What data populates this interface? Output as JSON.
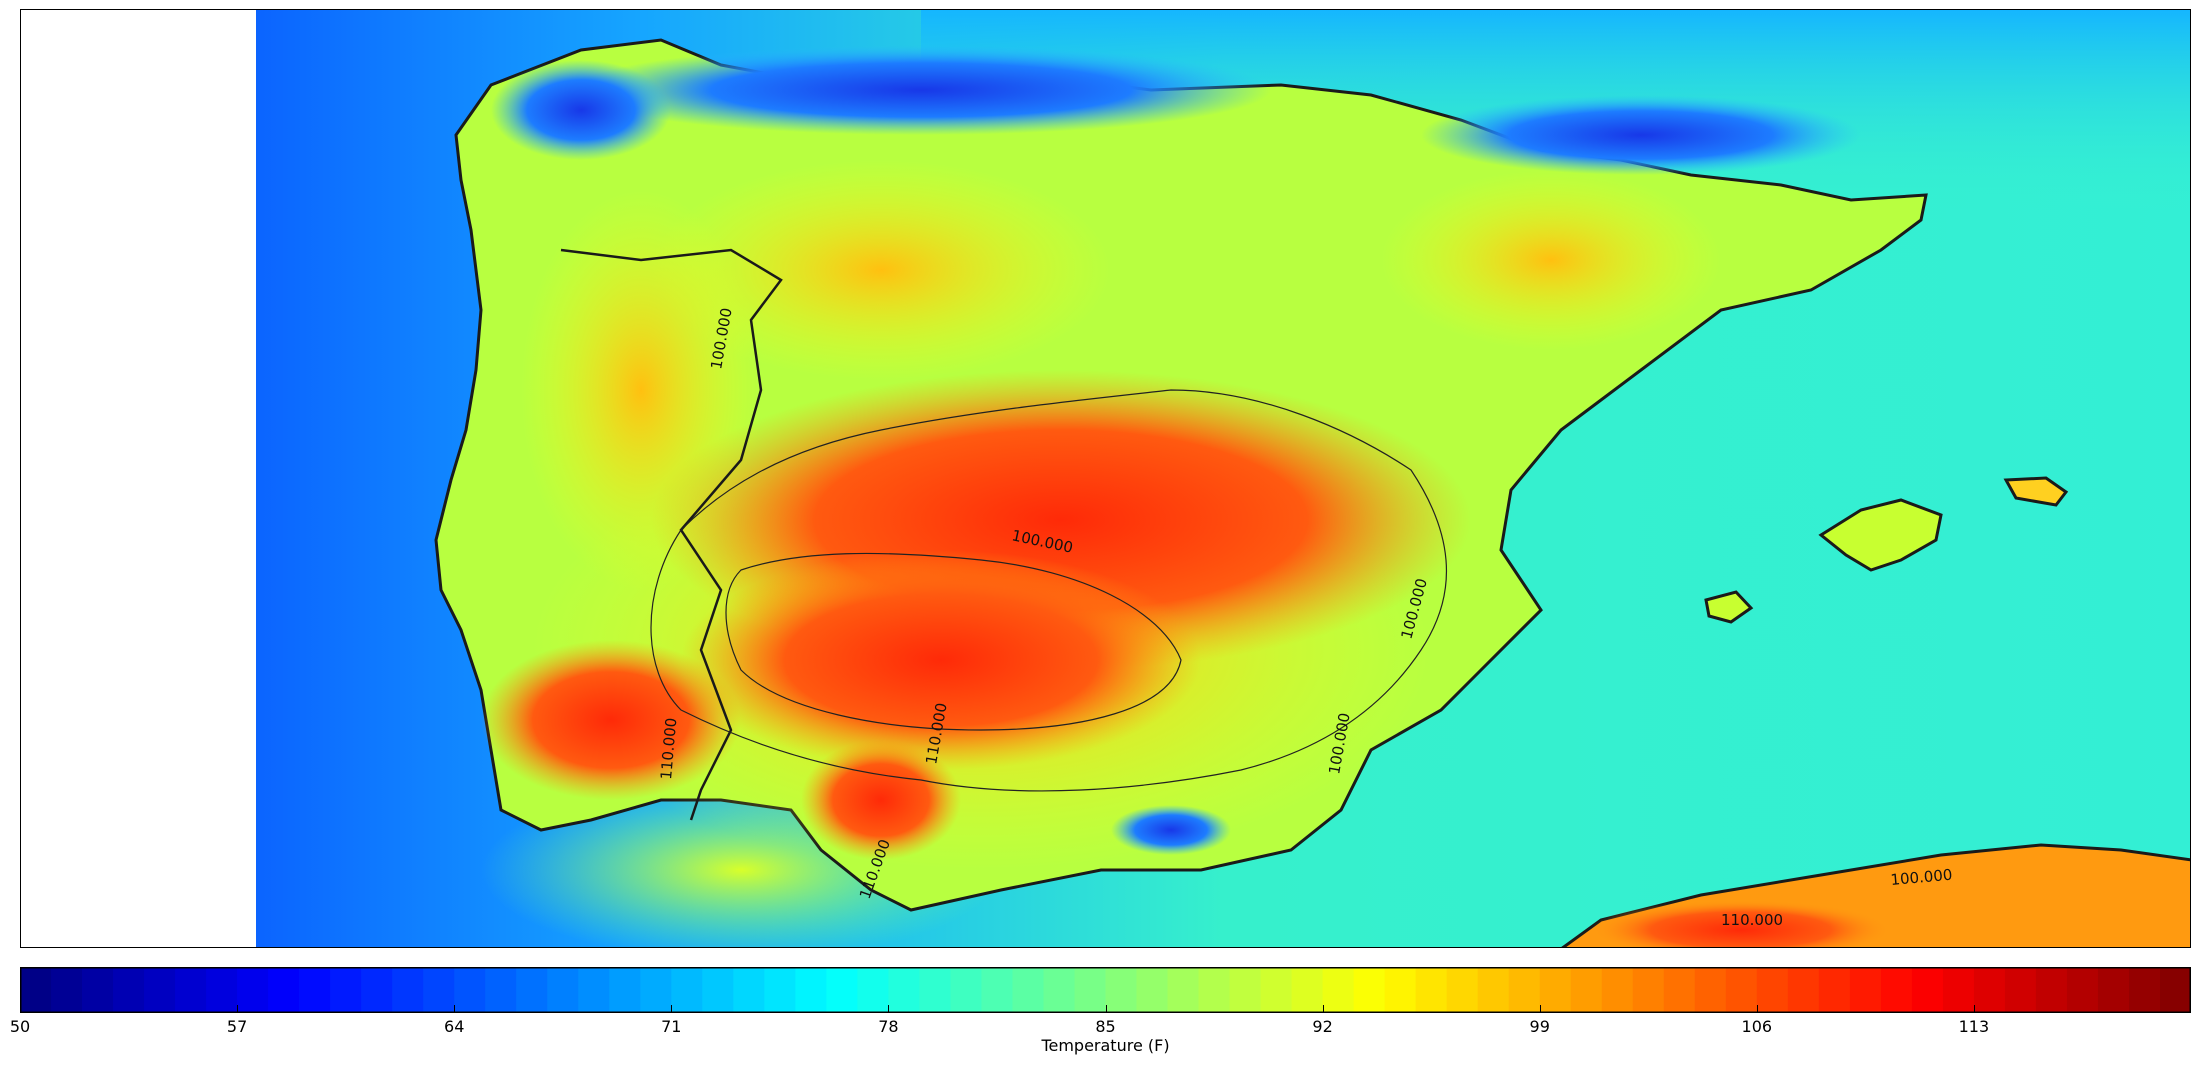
{
  "map": {
    "contour_labels": [
      "100.000",
      "100.000",
      "100.000",
      "100.000",
      "100.000",
      "110.000",
      "110.000",
      "110.000",
      "110.000"
    ]
  },
  "colorbar": {
    "label": "Temperature (F)",
    "min": 50,
    "max": 120,
    "ticks": [
      "50",
      "57",
      "64",
      "71",
      "78",
      "85",
      "92",
      "99",
      "106",
      "113"
    ],
    "tick_values": [
      50,
      57,
      64,
      71,
      78,
      85,
      92,
      99,
      106,
      113
    ],
    "colormap": "jet",
    "levels": 70
  },
  "colors": {
    "ocean_west": "#1a7cff",
    "ocean_east": "#20e8d8",
    "hot": "#ff3a10",
    "cold": "#1030e0",
    "coastline": "#1a1a1a"
  }
}
